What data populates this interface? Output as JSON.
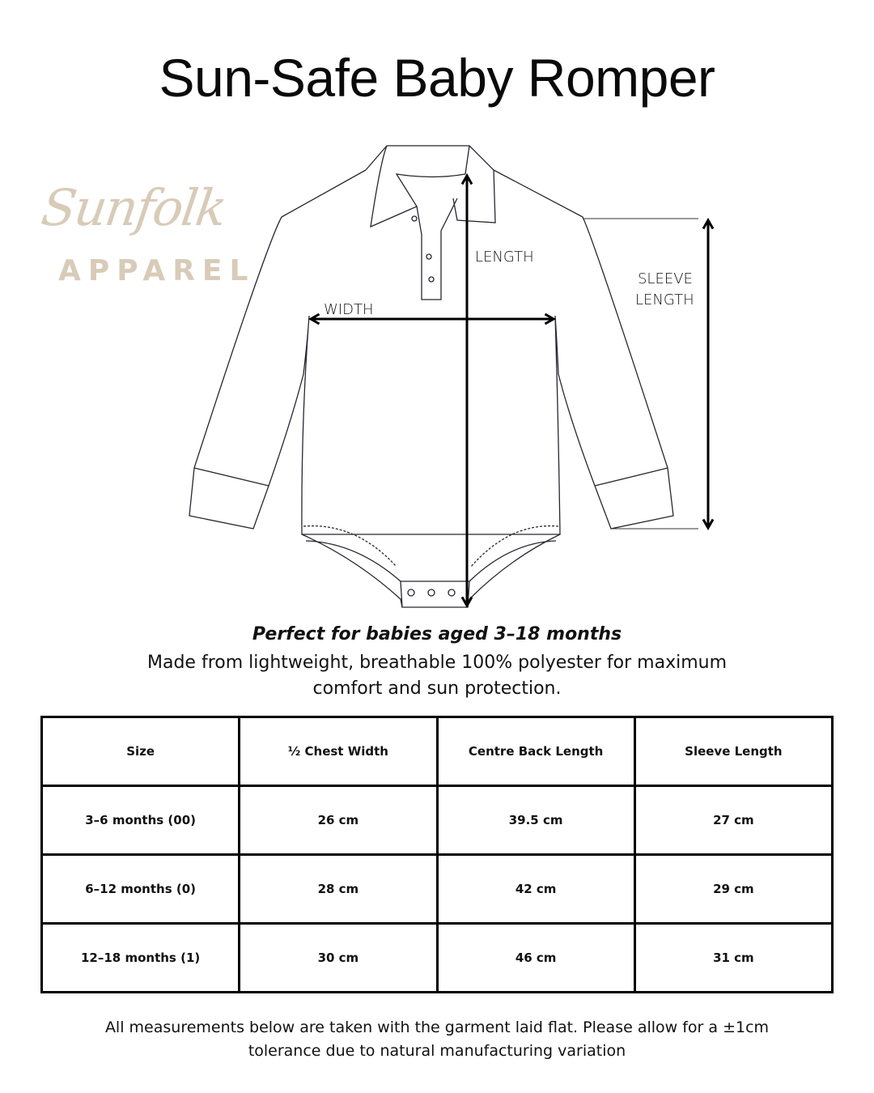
{
  "title": "Sun-Safe Baby Romper",
  "logo": {
    "script": "Sunfolk",
    "sub": "APPAREL",
    "color": "#d8cbb8"
  },
  "diagram": {
    "length": "LENGTH",
    "width": "WIDTH",
    "sleeve_1": "SLEEVE",
    "sleeve_2": "LENGTH"
  },
  "tagline": "Perfect for babies aged 3–18 months",
  "description": "Made from lightweight, breathable 100% polyester for maximum comfort and sun protection.",
  "table": {
    "headers": [
      "Size",
      "½ Chest Width",
      "Centre Back Length",
      "Sleeve Length"
    ],
    "rows": [
      [
        "3–6 months (00)",
        "26 cm",
        "39.5 cm",
        "27 cm"
      ],
      [
        "6–12 months (0)",
        "28 cm",
        "42 cm",
        "29 cm"
      ],
      [
        "12–18 months (1)",
        "30 cm",
        "46 cm",
        "31 cm"
      ]
    ]
  },
  "footer": "All measurements below are taken with the garment laid flat. Please allow for a ±1cm tolerance due to natural manufacturing variation"
}
